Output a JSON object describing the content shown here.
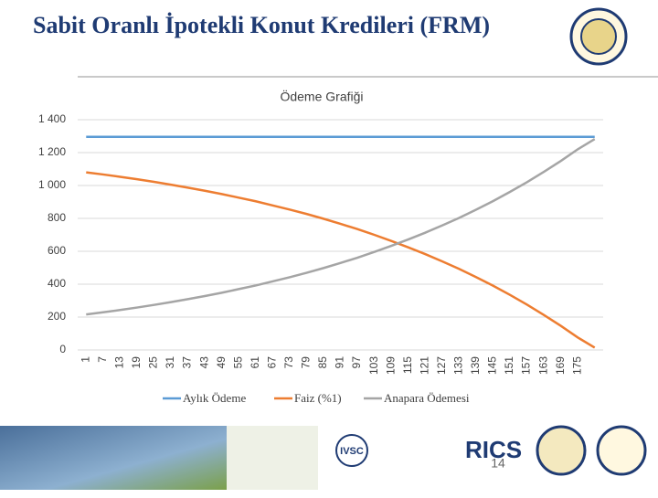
{
  "slide": {
    "title": "Sabit Oranlı İpotekli Konut Kredileri (FRM)",
    "page_number": "14",
    "footer_logos": [
      "IVSC",
      "RICS"
    ]
  },
  "chart_data": {
    "type": "line",
    "title": "Ödeme Grafiği",
    "categories": [
      "1",
      "7",
      "13",
      "19",
      "25",
      "31",
      "37",
      "43",
      "49",
      "55",
      "61",
      "67",
      "73",
      "79",
      "85",
      "91",
      "97",
      "103",
      "109",
      "115",
      "121",
      "127",
      "133",
      "139",
      "145",
      "151",
      "157",
      "163",
      "169",
      "175",
      null
    ],
    "series": [
      {
        "name": "Aylık Ödeme",
        "color": "#5b9bd5",
        "values": [
          1296,
          1296,
          1296,
          1296,
          1296,
          1296,
          1296,
          1296,
          1296,
          1296,
          1296,
          1296,
          1296,
          1296,
          1296,
          1296,
          1296,
          1296,
          1296,
          1296,
          1296,
          1296,
          1296,
          1296,
          1296,
          1296,
          1296,
          1296,
          1296,
          1296,
          1296
        ]
      },
      {
        "name": "Faiz (%1)",
        "color": "#ed7d31",
        "values": [
          1080,
          1067,
          1053,
          1038,
          1022,
          1005,
          987,
          968,
          948,
          926,
          904,
          879,
          854,
          827,
          798,
          767,
          735,
          700,
          663,
          624,
          583,
          539,
          493,
          443,
          391,
          335,
          276,
          213,
          147,
          76,
          14
        ]
      },
      {
        "name": "Anapara Ödemesi",
        "color": "#a5a5a5",
        "values": [
          216,
          229,
          243,
          258,
          274,
          291,
          309,
          328,
          348,
          370,
          392,
          417,
          442,
          469,
          498,
          529,
          561,
          596,
          633,
          672,
          713,
          757,
          803,
          853,
          905,
          961,
          1020,
          1083,
          1149,
          1220,
          1282
        ]
      }
    ],
    "ylim": [
      0,
      1400
    ],
    "yticks": [
      0,
      {
        "value": 200,
        "label": "200"
      },
      {
        "value": 400,
        "label": "400"
      },
      {
        "value": 600,
        "label": "600"
      },
      {
        "value": 800,
        "label": "800"
      },
      {
        "value": 1000,
        "label": "1 000"
      },
      {
        "value": 1200,
        "label": "1 200"
      },
      {
        "value": 1400,
        "label": "1 400"
      }
    ],
    "grid": true,
    "legend": "bottom"
  }
}
